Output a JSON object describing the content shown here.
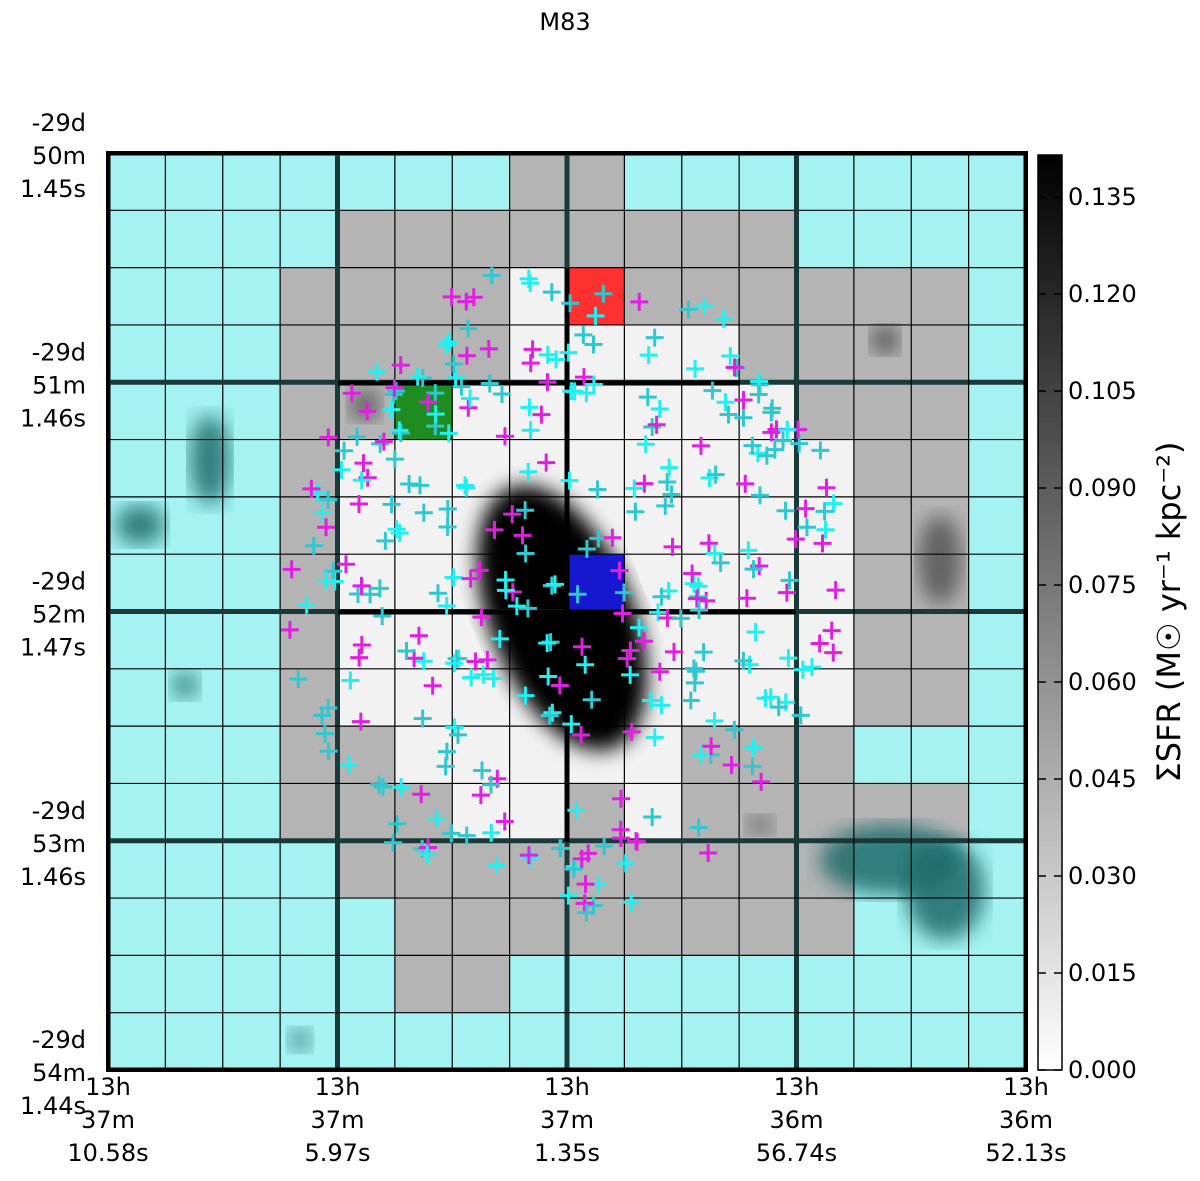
{
  "chart_data": {
    "type": "heatmap",
    "title": "M83",
    "colorbar_label": "ΣSFR (M☉ yr⁻¹ kpc⁻²)",
    "clim": [
      0,
      0.1415
    ],
    "cticks": [
      {
        "value": 0,
        "label": "0.000"
      },
      0.015,
      {
        "value": 0.03,
        "label": "0.030"
      },
      0.045,
      {
        "value": 0.06,
        "label": "0.060"
      },
      0.075,
      {
        "value": 0.09,
        "label": "0.090"
      },
      0.105,
      {
        "value": 0.12,
        "label": "0.120"
      },
      0.135
    ],
    "xtick_labels": [
      [
        "13h",
        "37m",
        "10.58s"
      ],
      [
        "13h",
        "37m",
        "5.97s"
      ],
      [
        "13h",
        "37m",
        "1.35s"
      ],
      [
        "13h",
        "36m",
        "56.74s"
      ],
      [
        "13h",
        "36m",
        "52.13s"
      ]
    ],
    "ytick_labels": [
      [
        "-29d",
        "50m",
        "1.45s"
      ],
      [
        "-29d",
        "51m",
        "1.46s"
      ],
      [
        "-29d",
        "52m",
        "1.47s"
      ],
      [
        "-29d",
        "53m",
        "1.46s"
      ],
      [
        "-29d",
        "54m",
        "1.44s"
      ]
    ]
  }
}
